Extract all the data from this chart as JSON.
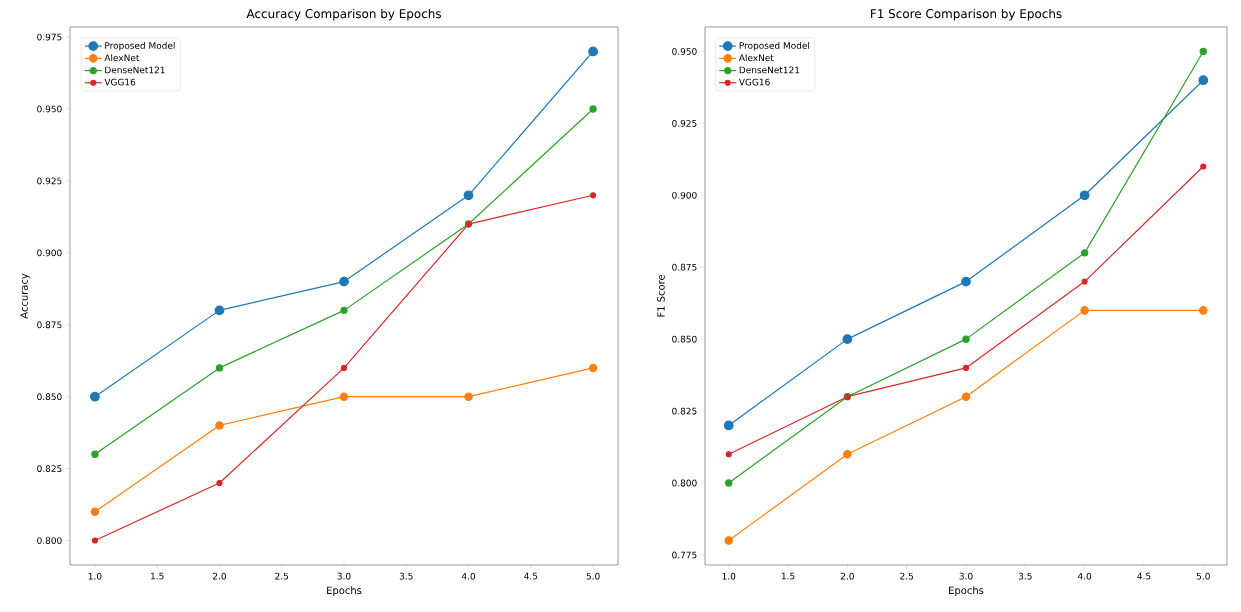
{
  "chart_data": [
    {
      "type": "line",
      "title": "Accuracy Comparison by Epochs",
      "xlabel": "Epochs",
      "ylabel": "Accuracy",
      "x": [
        1,
        2,
        3,
        4,
        5
      ],
      "series": [
        {
          "name": "Proposed Model",
          "color": "#1f77b4",
          "values": [
            0.85,
            0.88,
            0.89,
            0.92,
            0.97
          ]
        },
        {
          "name": "AlexNet",
          "color": "#ff7f0e",
          "values": [
            0.81,
            0.84,
            0.85,
            0.85,
            0.86
          ]
        },
        {
          "name": "DenseNet121",
          "color": "#2ca02c",
          "values": [
            0.83,
            0.86,
            0.88,
            0.91,
            0.95
          ]
        },
        {
          "name": "VGG16",
          "color": "#d62728",
          "values": [
            0.8,
            0.82,
            0.86,
            0.91,
            0.92
          ]
        }
      ],
      "xlim": [
        0.8,
        5.2
      ],
      "ylim": [
        0.7915,
        0.9785
      ],
      "xticks": [
        {
          "value": 1,
          "label": "1.0"
        },
        {
          "value": 1.5,
          "label": "1.5"
        },
        {
          "value": 2,
          "label": "2.0"
        },
        {
          "value": 2.5,
          "label": "2.5"
        },
        {
          "value": 3,
          "label": "3.0"
        },
        {
          "value": 3.5,
          "label": "3.5"
        },
        {
          "value": 4,
          "label": "4.0"
        },
        {
          "value": 4.5,
          "label": "4.5"
        },
        {
          "value": 5,
          "label": "5.0"
        }
      ],
      "yticks": [
        {
          "value": 0.8,
          "label": "0.800"
        },
        {
          "value": 0.825,
          "label": "0.825"
        },
        {
          "value": 0.85,
          "label": "0.850"
        },
        {
          "value": 0.875,
          "label": "0.875"
        },
        {
          "value": 0.9,
          "label": "0.900"
        },
        {
          "value": 0.925,
          "label": "0.925"
        },
        {
          "value": 0.95,
          "label": "0.950"
        },
        {
          "value": 0.975,
          "label": "0.975"
        }
      ],
      "legend": "top left",
      "marker": "circle",
      "line_style": "solid"
    },
    {
      "type": "line",
      "title": "F1 Score Comparison by Epochs",
      "xlabel": "Epochs",
      "ylabel": "F1 Score",
      "x": [
        1,
        2,
        3,
        4,
        5
      ],
      "series": [
        {
          "name": "Proposed Model",
          "color": "#1f77b4",
          "values": [
            0.82,
            0.85,
            0.87,
            0.9,
            0.94
          ]
        },
        {
          "name": "AlexNet",
          "color": "#ff7f0e",
          "values": [
            0.78,
            0.81,
            0.83,
            0.86,
            0.86
          ]
        },
        {
          "name": "DenseNet121",
          "color": "#2ca02c",
          "values": [
            0.8,
            0.83,
            0.85,
            0.88,
            0.95
          ]
        },
        {
          "name": "VGG16",
          "color": "#d62728",
          "values": [
            0.81,
            0.83,
            0.84,
            0.87,
            0.91
          ]
        }
      ],
      "xlim": [
        0.8,
        5.2
      ],
      "ylim": [
        0.7715,
        0.9585
      ],
      "xticks": [
        {
          "value": 1,
          "label": "1.0"
        },
        {
          "value": 1.5,
          "label": "1.5"
        },
        {
          "value": 2,
          "label": "2.0"
        },
        {
          "value": 2.5,
          "label": "2.5"
        },
        {
          "value": 3,
          "label": "3.0"
        },
        {
          "value": 3.5,
          "label": "3.5"
        },
        {
          "value": 4,
          "label": "4.0"
        },
        {
          "value": 4.5,
          "label": "4.5"
        },
        {
          "value": 5,
          "label": "5.0"
        }
      ],
      "yticks": [
        {
          "value": 0.775,
          "label": "0.775"
        },
        {
          "value": 0.8,
          "label": "0.800"
        },
        {
          "value": 0.825,
          "label": "0.825"
        },
        {
          "value": 0.85,
          "label": "0.850"
        },
        {
          "value": 0.875,
          "label": "0.875"
        },
        {
          "value": 0.9,
          "label": "0.900"
        },
        {
          "value": 0.925,
          "label": "0.925"
        },
        {
          "value": 0.95,
          "label": "0.950"
        }
      ],
      "legend": "top left",
      "marker": "circle",
      "line_style": "solid"
    }
  ]
}
